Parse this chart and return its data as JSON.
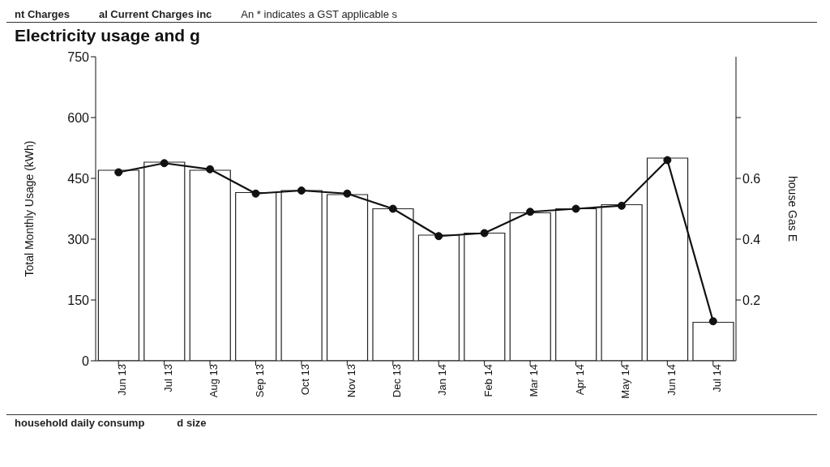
{
  "chart_data": {
    "type": "bar",
    "title": "Electricity usage and g",
    "ylabel": "Total Monthly Usage (kWh)",
    "y2label": "house Gas E",
    "categories": [
      "Jun 13",
      "Jul 13",
      "Aug 13",
      "Sep 13",
      "Oct 13",
      "Nov 13",
      "Dec 13",
      "Jan 14",
      "Feb 14",
      "Mar 14",
      "Apr 14",
      "May 14",
      "Jun 14",
      "Jul 14"
    ],
    "series": [
      {
        "color": "#ffffff",
        "values": [
          470,
          490,
          470,
          415,
          420,
          410,
          375,
          310,
          315,
          365,
          375,
          385,
          500,
          95
        ]
      },
      {
        "type": "line",
        "axis": "y2",
        "color": "#111111",
        "values": [
          0.62,
          0.65,
          0.63,
          0.55,
          0.56,
          0.55,
          0.5,
          0.41,
          0.42,
          0.49,
          0.5,
          0.51,
          0.66,
          0.13
        ]
      }
    ],
    "ylim": [
      0,
      750
    ],
    "yticks": [
      0,
      150,
      300,
      450,
      600,
      750
    ],
    "y2lim": [
      0,
      1
    ],
    "y2ticks": [
      0.2,
      0.4,
      0.6,
      {
        "value": 0.8,
        "label": null
      }
    ],
    "marker": "circle",
    "annotations": [
      "nt Charges",
      "al Current Charges inc",
      "An * indicates a GST applicable s",
      "household daily consump",
      "d size"
    ]
  }
}
